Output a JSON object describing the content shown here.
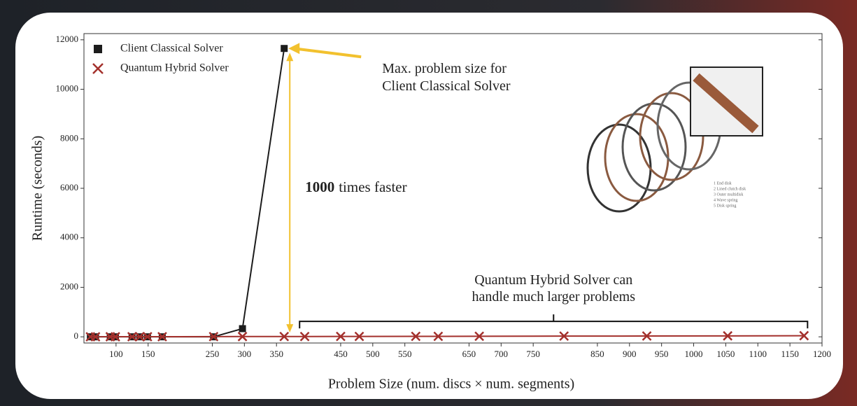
{
  "chart_data": {
    "type": "line",
    "xlabel": "Problem Size (num. discs × num. segments)",
    "ylabel": "Runtime (seconds)",
    "xlim": [
      50,
      1200
    ],
    "xticks": [
      100,
      150,
      250,
      300,
      350,
      450,
      500,
      550,
      650,
      700,
      750,
      850,
      900,
      950,
      1000,
      1050,
      1100,
      1150,
      1200
    ],
    "ylim": [
      -250,
      12250
    ],
    "yticks": [
      0,
      2000,
      4000,
      6000,
      8000,
      10000,
      12000
    ],
    "legend": "upper left",
    "series": [
      {
        "name": "Client Classical Solver",
        "color": "#1c1c1c",
        "marker": "square",
        "x": [
          60,
          68,
          91,
          99,
          125,
          137,
          149,
          172,
          252,
          297,
          362
        ],
        "values": [
          0,
          0,
          0,
          0,
          0,
          0,
          0,
          0,
          0,
          330,
          11650
        ]
      },
      {
        "name": "Quantum Hybrid Solver",
        "color": "#a3302c",
        "marker": "cross",
        "x": [
          60,
          68,
          91,
          99,
          125,
          137,
          149,
          172,
          252,
          297,
          362,
          394,
          450,
          479,
          567,
          602,
          666,
          798,
          927,
          1053,
          1172
        ],
        "values": [
          2,
          2,
          3,
          3,
          4,
          4,
          5,
          5,
          8,
          10,
          12,
          13,
          15,
          16,
          18,
          20,
          22,
          28,
          32,
          38,
          45
        ]
      }
    ],
    "annotations": {
      "max_size": [
        "Max. problem size for",
        "Client Classical Solver"
      ],
      "speedup_bold": "1000",
      "speedup_rest": "times faster",
      "larger": [
        "Quantum Hybrid Solver can",
        "handle much larger problems"
      ]
    },
    "inset_labels": [
      "1 End disk",
      "2 Lined clutch disk",
      "3 Outer multidisk",
      "4 Wave spring",
      "5 Disk spring"
    ]
  }
}
